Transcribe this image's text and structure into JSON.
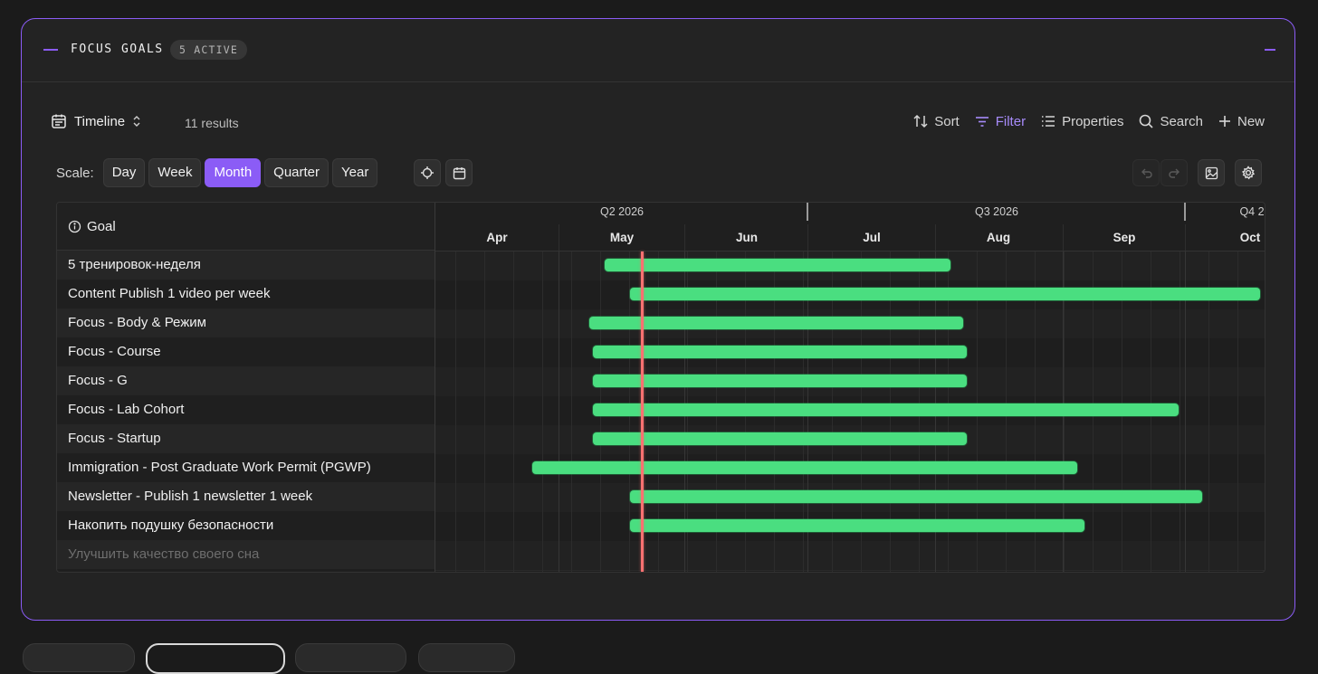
{
  "panel": {
    "title": "FOCUS GOALS",
    "badge": "5 ACTIVE"
  },
  "toolbar": {
    "view_label": "Timeline",
    "results": "11 results",
    "sort": "Sort",
    "filter": "Filter",
    "properties": "Properties",
    "search": "Search",
    "new": "New"
  },
  "scale": {
    "label": "Scale:",
    "options": [
      "Day",
      "Week",
      "Month",
      "Quarter",
      "Year"
    ],
    "selected": "Month"
  },
  "grid": {
    "goal_header": "Goal",
    "quarters": [
      "Q2 2026",
      "Q3 2026",
      "Q4 2"
    ],
    "months": [
      "Apr",
      "May",
      "Jun",
      "Jul",
      "Aug",
      "Sep",
      "Oct"
    ],
    "rows": [
      {
        "label": "5 тренировок-неделя",
        "start_month": 1.35,
        "end_month": 4.11
      },
      {
        "label": "Content Publish 1 video per week",
        "start_month": 1.55,
        "end_month": 6.58
      },
      {
        "label": "Focus - Body & Режим",
        "start_month": 1.23,
        "end_month": 4.21
      },
      {
        "label": "Focus - Course",
        "start_month": 1.26,
        "end_month": 4.24
      },
      {
        "label": "Focus - G",
        "start_month": 1.26,
        "end_month": 4.24
      },
      {
        "label": "Focus - Lab Cohort",
        "start_month": 1.26,
        "end_month": 5.93
      },
      {
        "label": "Focus - Startup",
        "start_month": 1.26,
        "end_month": 4.24
      },
      {
        "label": "Immigration - Post Graduate Work Permit (PGWP)",
        "start_month": 0.77,
        "end_month": 5.12
      },
      {
        "label": "Newsletter - Publish 1 newsletter 1 week",
        "start_month": 1.55,
        "end_month": 6.12
      },
      {
        "label": "Накопить подушку безопасности",
        "start_month": 1.55,
        "end_month": 5.18
      },
      {
        "label": "Улучшить качество своего сна",
        "start_month": null,
        "end_month": null
      }
    ],
    "today_month": 1.64
  },
  "colors": {
    "accent": "#8b5cf6",
    "bar": "#4ade80",
    "today": "#f87171"
  }
}
